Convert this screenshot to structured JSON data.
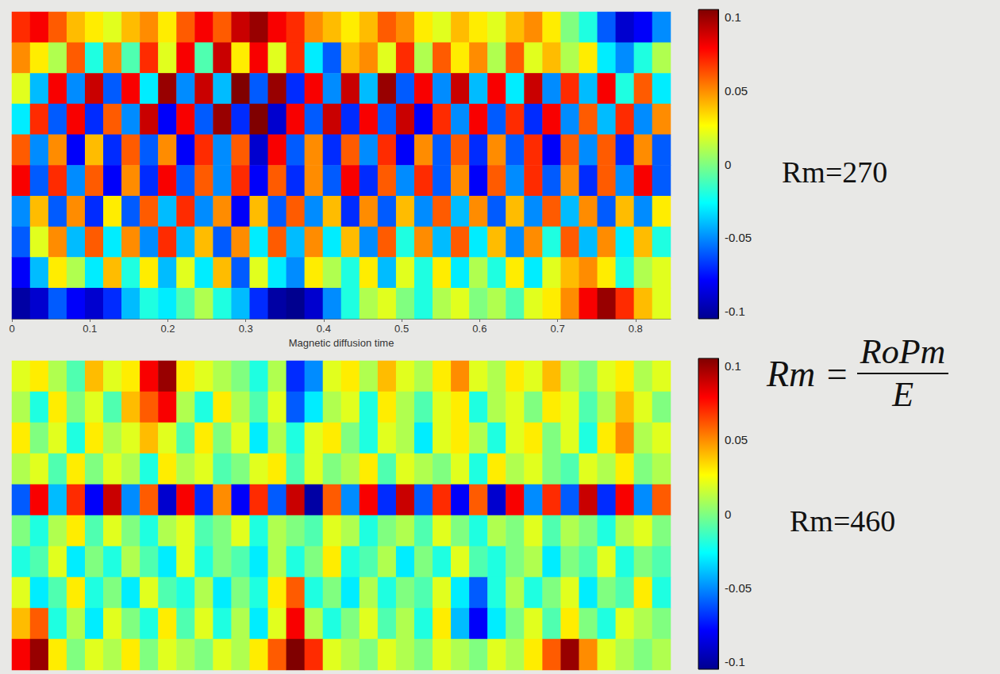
{
  "chart_data": [
    {
      "type": "heatmap",
      "annotation": "Rm=270",
      "x_label": "Magnetic diffusion time",
      "x": [
        0.012,
        0.035,
        0.059,
        0.082,
        0.106,
        0.129,
        0.153,
        0.176,
        0.2,
        0.223,
        0.246,
        0.27,
        0.293,
        0.317,
        0.34,
        0.364,
        0.387,
        0.411,
        0.434,
        0.458,
        0.481,
        0.505,
        0.528,
        0.552,
        0.575,
        0.599,
        0.622,
        0.646,
        0.669,
        0.693,
        0.716,
        0.74,
        0.763,
        0.786,
        0.81,
        0.833
      ],
      "xlim": [
        0,
        0.845
      ],
      "xticks": [
        0,
        0.1,
        0.2,
        0.3,
        0.4,
        0.5,
        0.6,
        0.7,
        0.8
      ],
      "tick_labels": "x",
      "values": [
        [
          0.07,
          0.08,
          0.06,
          0.04,
          0.03,
          0.02,
          0.04,
          0.05,
          0.03,
          0.06,
          0.08,
          0.06,
          0.09,
          0.1,
          0.08,
          0.07,
          0.05,
          0.04,
          0.03,
          0.04,
          0.06,
          0.05,
          0.03,
          0.02,
          0.04,
          0.03,
          0.02,
          0.04,
          0.05,
          0.03,
          0.0,
          -0.02,
          -0.06,
          -0.09,
          -0.08,
          -0.05
        ],
        [
          0.05,
          0.03,
          0.01,
          0.06,
          -0.02,
          0.05,
          -0.01,
          0.07,
          0.02,
          0.08,
          -0.01,
          0.09,
          0.03,
          0.08,
          0.02,
          0.07,
          -0.03,
          -0.06,
          0.04,
          0.05,
          0.02,
          0.07,
          0.01,
          0.06,
          0.03,
          0.05,
          0.01,
          0.06,
          0.02,
          0.04,
          0.01,
          0.03,
          -0.03,
          -0.05,
          -0.02,
          0.01
        ],
        [
          0.02,
          -0.04,
          0.08,
          -0.05,
          0.09,
          -0.06,
          0.08,
          -0.03,
          0.1,
          -0.05,
          0.09,
          -0.04,
          0.11,
          -0.06,
          0.1,
          -0.07,
          0.08,
          -0.05,
          0.09,
          -0.04,
          0.1,
          -0.06,
          0.08,
          -0.05,
          0.09,
          -0.04,
          0.08,
          -0.03,
          0.09,
          -0.05,
          0.07,
          -0.04,
          0.08,
          -0.02,
          0.06,
          -0.03
        ],
        [
          -0.03,
          0.07,
          -0.06,
          0.08,
          -0.07,
          0.06,
          -0.05,
          0.09,
          -0.08,
          0.08,
          -0.06,
          0.1,
          -0.07,
          0.11,
          -0.09,
          0.08,
          -0.06,
          0.09,
          -0.07,
          0.08,
          -0.06,
          0.09,
          -0.08,
          0.07,
          -0.05,
          0.08,
          -0.06,
          0.07,
          -0.07,
          0.08,
          -0.05,
          0.06,
          -0.04,
          0.07,
          -0.05,
          0.05
        ],
        [
          0.06,
          -0.05,
          0.05,
          -0.08,
          0.04,
          -0.07,
          0.06,
          -0.06,
          0.05,
          -0.08,
          0.07,
          -0.05,
          0.06,
          -0.09,
          0.08,
          -0.06,
          0.05,
          -0.07,
          0.06,
          -0.05,
          0.07,
          -0.08,
          0.05,
          -0.06,
          0.06,
          -0.07,
          0.05,
          -0.06,
          0.07,
          -0.08,
          0.06,
          -0.05,
          0.06,
          -0.07,
          0.05,
          -0.06
        ],
        [
          0.08,
          -0.06,
          0.07,
          -0.05,
          0.06,
          -0.08,
          0.05,
          -0.07,
          0.08,
          -0.06,
          0.06,
          -0.05,
          0.07,
          -0.08,
          0.06,
          -0.07,
          0.05,
          -0.06,
          0.08,
          -0.07,
          0.06,
          -0.05,
          0.07,
          -0.06,
          0.05,
          -0.08,
          0.06,
          -0.05,
          0.07,
          -0.06,
          0.05,
          -0.07,
          0.06,
          -0.05,
          0.08,
          -0.06
        ],
        [
          -0.05,
          0.04,
          -0.06,
          0.05,
          -0.07,
          0.03,
          -0.06,
          0.06,
          -0.04,
          0.07,
          -0.05,
          0.05,
          -0.08,
          0.04,
          -0.06,
          0.06,
          -0.05,
          0.04,
          -0.07,
          0.05,
          -0.06,
          0.04,
          -0.05,
          0.06,
          -0.04,
          0.05,
          -0.06,
          0.04,
          -0.05,
          0.06,
          -0.04,
          0.05,
          -0.06,
          0.04,
          -0.05,
          0.03
        ],
        [
          -0.06,
          0.02,
          0.05,
          -0.04,
          0.06,
          -0.03,
          0.05,
          -0.05,
          0.07,
          -0.04,
          0.04,
          -0.06,
          0.05,
          -0.03,
          0.06,
          -0.04,
          0.05,
          -0.03,
          0.04,
          -0.05,
          0.06,
          -0.02,
          0.05,
          -0.04,
          0.06,
          -0.03,
          0.04,
          -0.05,
          0.05,
          -0.02,
          0.06,
          -0.04,
          0.05,
          -0.03,
          0.04,
          -0.02
        ],
        [
          -0.08,
          -0.04,
          0.03,
          0.01,
          -0.03,
          0.04,
          -0.02,
          0.03,
          -0.04,
          0.02,
          -0.03,
          0.04,
          -0.06,
          0.02,
          -0.03,
          -0.05,
          0.03,
          0.01,
          -0.02,
          0.03,
          -0.04,
          0.02,
          -0.02,
          0.03,
          -0.03,
          0.01,
          -0.02,
          0.03,
          -0.03,
          0.02,
          0.04,
          0.05,
          0.03,
          -0.02,
          0.01,
          0.02
        ],
        [
          -0.1,
          -0.09,
          -0.06,
          -0.08,
          -0.09,
          -0.07,
          -0.04,
          -0.02,
          -0.03,
          -0.01,
          0.01,
          -0.02,
          -0.04,
          -0.07,
          -0.1,
          -0.11,
          -0.09,
          -0.05,
          -0.02,
          0.01,
          0.02,
          0.0,
          -0.02,
          0.01,
          0.02,
          0.0,
          0.01,
          -0.01,
          0.02,
          0.03,
          0.05,
          0.08,
          0.1,
          0.07,
          0.04,
          0.02
        ]
      ],
      "color_range": [
        -0.105,
        0.105
      ],
      "color_ticks": [
        -0.1,
        -0.05,
        0,
        0.05,
        0.1
      ]
    },
    {
      "type": "heatmap",
      "annotation": "Rm=460",
      "x": [
        0.012,
        0.035,
        0.059,
        0.082,
        0.106,
        0.129,
        0.153,
        0.176,
        0.2,
        0.223,
        0.246,
        0.27,
        0.293,
        0.317,
        0.34,
        0.364,
        0.387,
        0.411,
        0.434,
        0.458,
        0.481,
        0.505,
        0.528,
        0.552,
        0.575,
        0.599,
        0.622,
        0.646,
        0.669,
        0.693,
        0.716,
        0.74,
        0.763,
        0.786,
        0.81,
        0.833
      ],
      "tick_labels": false,
      "values": [
        [
          0.02,
          0.03,
          0.01,
          -0.01,
          0.04,
          0.02,
          0.03,
          0.08,
          0.1,
          0.03,
          0.02,
          0.01,
          0.0,
          -0.02,
          0.01,
          -0.07,
          -0.05,
          0.02,
          0.03,
          0.01,
          0.04,
          0.02,
          0.01,
          0.03,
          0.05,
          0.02,
          0.01,
          0.03,
          0.02,
          0.04,
          0.01,
          0.0,
          0.02,
          0.03,
          0.01,
          0.02
        ],
        [
          0.01,
          -0.02,
          0.03,
          0.0,
          0.02,
          -0.01,
          0.04,
          0.06,
          0.08,
          0.01,
          -0.02,
          0.03,
          0.01,
          -0.01,
          0.02,
          -0.06,
          -0.03,
          0.01,
          0.02,
          -0.02,
          0.03,
          0.01,
          -0.01,
          0.02,
          0.03,
          -0.02,
          0.01,
          0.02,
          0.0,
          0.03,
          0.02,
          -0.01,
          0.01,
          0.04,
          0.02,
          0.0
        ],
        [
          0.03,
          0.0,
          0.02,
          -0.02,
          0.03,
          0.01,
          0.02,
          0.04,
          0.02,
          -0.01,
          0.03,
          0.0,
          0.02,
          -0.03,
          0.01,
          -0.02,
          0.02,
          0.03,
          0.0,
          -0.02,
          0.02,
          0.01,
          -0.03,
          0.02,
          0.03,
          0.01,
          -0.02,
          0.02,
          0.03,
          0.0,
          0.02,
          -0.02,
          0.03,
          0.05,
          0.01,
          0.02
        ],
        [
          0.01,
          0.02,
          -0.01,
          0.03,
          0.0,
          0.02,
          0.01,
          -0.02,
          0.03,
          0.01,
          0.02,
          -0.01,
          0.0,
          0.02,
          0.03,
          -0.01,
          0.02,
          0.0,
          0.01,
          0.03,
          -0.01,
          0.02,
          0.01,
          0.0,
          0.02,
          -0.02,
          0.03,
          0.01,
          0.02,
          0.0,
          -0.01,
          0.02,
          0.01,
          0.03,
          0.0,
          0.01
        ],
        [
          -0.06,
          0.08,
          -0.04,
          0.07,
          -0.08,
          0.09,
          -0.05,
          0.06,
          -0.09,
          0.08,
          -0.07,
          0.05,
          -0.08,
          0.07,
          -0.06,
          0.09,
          -0.1,
          0.06,
          -0.05,
          0.08,
          -0.07,
          0.09,
          -0.06,
          0.07,
          -0.08,
          0.06,
          -0.09,
          0.08,
          -0.05,
          0.07,
          -0.06,
          0.09,
          -0.07,
          0.08,
          -0.05,
          0.06
        ],
        [
          0.0,
          -0.02,
          0.01,
          0.03,
          -0.01,
          0.02,
          0.0,
          -0.02,
          0.01,
          0.02,
          -0.01,
          0.0,
          0.02,
          -0.02,
          0.01,
          0.0,
          -0.01,
          0.02,
          0.01,
          -0.02,
          0.0,
          0.01,
          -0.01,
          0.02,
          0.0,
          -0.02,
          0.01,
          0.0,
          0.02,
          -0.01,
          0.01,
          0.0,
          -0.02,
          0.01,
          0.02,
          0.0
        ],
        [
          -0.02,
          -0.01,
          0.02,
          -0.03,
          0.0,
          -0.02,
          0.01,
          -0.01,
          -0.03,
          0.02,
          -0.02,
          0.0,
          -0.01,
          -0.03,
          0.01,
          -0.02,
          0.0,
          0.03,
          -0.02,
          -0.01,
          0.01,
          -0.03,
          0.0,
          -0.02,
          0.02,
          -0.01,
          -0.02,
          0.0,
          0.01,
          -0.03,
          0.0,
          -0.01,
          0.02,
          -0.02,
          0.0,
          -0.01
        ],
        [
          0.02,
          -0.03,
          -0.01,
          0.03,
          -0.02,
          0.0,
          -0.03,
          0.02,
          -0.01,
          -0.02,
          0.01,
          -0.03,
          0.0,
          -0.02,
          0.03,
          0.06,
          -0.02,
          0.0,
          -0.03,
          0.01,
          -0.02,
          0.0,
          -0.01,
          0.02,
          -0.03,
          -0.06,
          -0.02,
          0.01,
          -0.02,
          0.0,
          0.02,
          -0.03,
          0.0,
          -0.01,
          0.03,
          -0.02
        ],
        [
          0.04,
          0.06,
          -0.02,
          0.01,
          -0.03,
          0.02,
          0.0,
          -0.02,
          0.03,
          -0.01,
          0.02,
          -0.02,
          0.01,
          -0.03,
          0.02,
          0.08,
          0.01,
          -0.02,
          0.0,
          0.02,
          -0.01,
          0.01,
          -0.02,
          0.03,
          -0.04,
          -0.08,
          -0.03,
          0.0,
          0.02,
          -0.01,
          0.03,
          0.0,
          -0.02,
          0.02,
          0.01,
          0.0
        ],
        [
          0.08,
          0.1,
          0.03,
          0.0,
          0.02,
          0.01,
          0.03,
          0.0,
          0.02,
          0.01,
          0.0,
          0.02,
          0.01,
          0.03,
          0.06,
          0.11,
          0.07,
          0.02,
          0.01,
          0.0,
          0.02,
          0.01,
          0.0,
          0.02,
          0.01,
          0.0,
          0.02,
          0.01,
          0.03,
          0.06,
          0.1,
          0.05,
          0.02,
          0.01,
          0.0,
          0.01
        ]
      ],
      "color_range": [
        -0.105,
        0.105
      ],
      "color_ticks": [
        -0.1,
        -0.05,
        0,
        0.05,
        0.1
      ]
    }
  ],
  "formula": {
    "lhs": "Rm =",
    "numerator": "RoPm",
    "denominator": "E"
  }
}
